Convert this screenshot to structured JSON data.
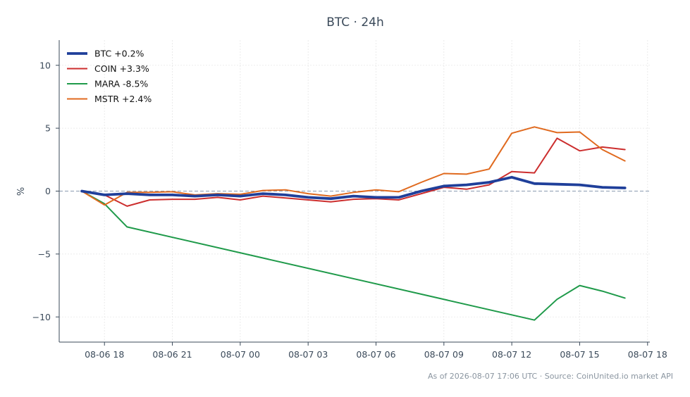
{
  "chart_data": {
    "type": "line",
    "title": "BTC · 24h",
    "xlabel": "",
    "ylabel": "%",
    "footer": "As of 2026-08-07 17:06 UTC · Source: CoinUnited.io market API",
    "x_unit": "hour",
    "x": [
      "2026-08-06 17:00",
      "2026-08-06 18:00",
      "2026-08-06 19:00",
      "2026-08-06 20:00",
      "2026-08-06 21:00",
      "2026-08-06 22:00",
      "2026-08-06 23:00",
      "2026-08-07 00:00",
      "2026-08-07 01:00",
      "2026-08-07 02:00",
      "2026-08-07 03:00",
      "2026-08-07 04:00",
      "2026-08-07 05:00",
      "2026-08-07 06:00",
      "2026-08-07 07:00",
      "2026-08-07 08:00",
      "2026-08-07 09:00",
      "2026-08-07 10:00",
      "2026-08-07 11:00",
      "2026-08-07 12:00",
      "2026-08-07 13:00",
      "2026-08-07 14:00",
      "2026-08-07 15:00",
      "2026-08-07 16:00",
      "2026-08-07 17:00"
    ],
    "x_ticks": [
      "08-06 18",
      "08-06 21",
      "08-07 00",
      "08-07 03",
      "08-07 06",
      "08-07 09",
      "08-07 12",
      "08-07 15",
      "08-07 18"
    ],
    "x_tick_positions": [
      "2026-08-06 18:00",
      "2026-08-06 21:00",
      "2026-08-07 00:00",
      "2026-08-07 03:00",
      "2026-08-07 06:00",
      "2026-08-07 09:00",
      "2026-08-07 12:00",
      "2026-08-07 15:00",
      "2026-08-07 18:00"
    ],
    "xlim": [
      "2026-08-06 16:00",
      "2026-08-07 18:06"
    ],
    "ylim": [
      -12,
      12
    ],
    "y_ticks": [
      10,
      5,
      0,
      -5,
      -10
    ],
    "y_tick_labels": [
      "10",
      "5",
      "0",
      "−5",
      "−10"
    ],
    "grid": true,
    "zero_line": true,
    "legend_position": "top-left",
    "series": [
      {
        "name": "BTC +0.2%",
        "color": "#1f3f9a",
        "width": 3.8,
        "values": [
          0.0,
          -0.3,
          -0.2,
          -0.3,
          -0.3,
          -0.4,
          -0.3,
          -0.4,
          -0.2,
          -0.3,
          -0.5,
          -0.6,
          -0.4,
          -0.5,
          -0.5,
          0.0,
          0.4,
          0.5,
          0.7,
          1.1,
          0.6,
          0.55,
          0.5,
          0.3,
          0.25
        ]
      },
      {
        "name": "COIN +3.3%",
        "color": "#cc2e2e",
        "width": 2,
        "values": [
          0.0,
          -0.3,
          -1.2,
          -0.7,
          -0.65,
          -0.65,
          -0.5,
          -0.7,
          -0.4,
          -0.55,
          -0.7,
          -0.85,
          -0.65,
          -0.6,
          -0.7,
          -0.2,
          0.3,
          0.15,
          0.5,
          1.55,
          1.45,
          4.2,
          3.2,
          3.5,
          3.3
        ]
      },
      {
        "name": "MARA -8.5%",
        "color": "#1f9a4a",
        "width": 2,
        "values": [
          0.0,
          -1.0,
          -2.85,
          null,
          null,
          null,
          null,
          null,
          null,
          null,
          null,
          null,
          null,
          null,
          null,
          null,
          null,
          null,
          null,
          null,
          -10.25,
          -8.6,
          -7.5,
          -7.95,
          -8.5
        ]
      },
      {
        "name": "MSTR +2.4%",
        "color": "#e06a1f",
        "width": 2,
        "values": [
          0.0,
          -1.1,
          -0.1,
          -0.1,
          -0.05,
          -0.3,
          -0.2,
          -0.25,
          0.05,
          0.1,
          -0.2,
          -0.4,
          -0.1,
          0.1,
          -0.05,
          0.7,
          1.4,
          1.35,
          1.75,
          4.6,
          5.1,
          4.65,
          4.7,
          3.3,
          2.4
        ]
      }
    ]
  }
}
